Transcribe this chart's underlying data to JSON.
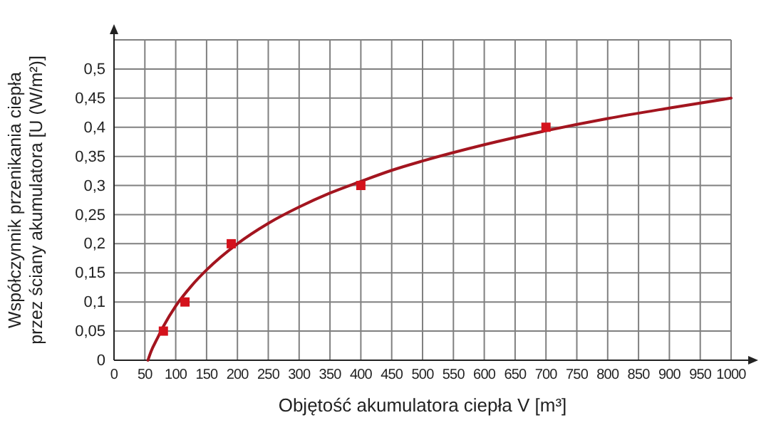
{
  "chart_data": {
    "type": "scatter",
    "xlabel": "Objętość akumulatora ciepła V  [m³]",
    "ylabel": "Współczynnik przenikania ciepła\nprzez ściany akumulatora  [U (W/m²)]",
    "xlim": [
      0,
      1000
    ],
    "ylim": [
      0,
      0.55
    ],
    "xticks": [
      0,
      50,
      100,
      150,
      200,
      250,
      300,
      350,
      400,
      450,
      500,
      550,
      600,
      650,
      700,
      750,
      800,
      850,
      900,
      950,
      1000
    ],
    "yticks": [
      {
        "value": 0,
        "label": "0"
      },
      {
        "value": 0.05,
        "label": "0,05"
      },
      {
        "value": 0.1,
        "label": "0,1"
      },
      {
        "value": 0.15,
        "label": "0,15"
      },
      {
        "value": 0.2,
        "label": "0,2"
      },
      {
        "value": 0.25,
        "label": "0,25"
      },
      {
        "value": 0.3,
        "label": "0,3"
      },
      {
        "value": 0.35,
        "label": "0,35"
      },
      {
        "value": 0.4,
        "label": "0,4"
      },
      {
        "value": 0.45,
        "label": "0,45"
      },
      {
        "value": 0.5,
        "label": "0,5"
      },
      {
        "value": 0.55,
        "label": null
      }
    ],
    "grid": true,
    "series": [
      {
        "type": "line",
        "color": "#a3151f",
        "marker": "none",
        "line_style": "solid",
        "x": [
          55,
          60,
          70,
          80,
          100,
          125,
          150,
          200,
          250,
          300,
          350,
          400,
          450,
          500,
          600,
          700,
          800,
          900,
          1000
        ],
        "values": [
          0,
          0.015,
          0.037,
          0.058,
          0.093,
          0.127,
          0.155,
          0.2,
          0.235,
          0.263,
          0.287,
          0.307,
          0.326,
          0.342,
          0.37,
          0.394,
          0.415,
          0.433,
          0.45
        ]
      },
      {
        "color": "#d4121c",
        "marker": "square",
        "x": [
          80,
          115,
          190,
          400,
          700
        ],
        "values": [
          0.05,
          0.1,
          0.2,
          0.3,
          0.4
        ]
      }
    ]
  }
}
